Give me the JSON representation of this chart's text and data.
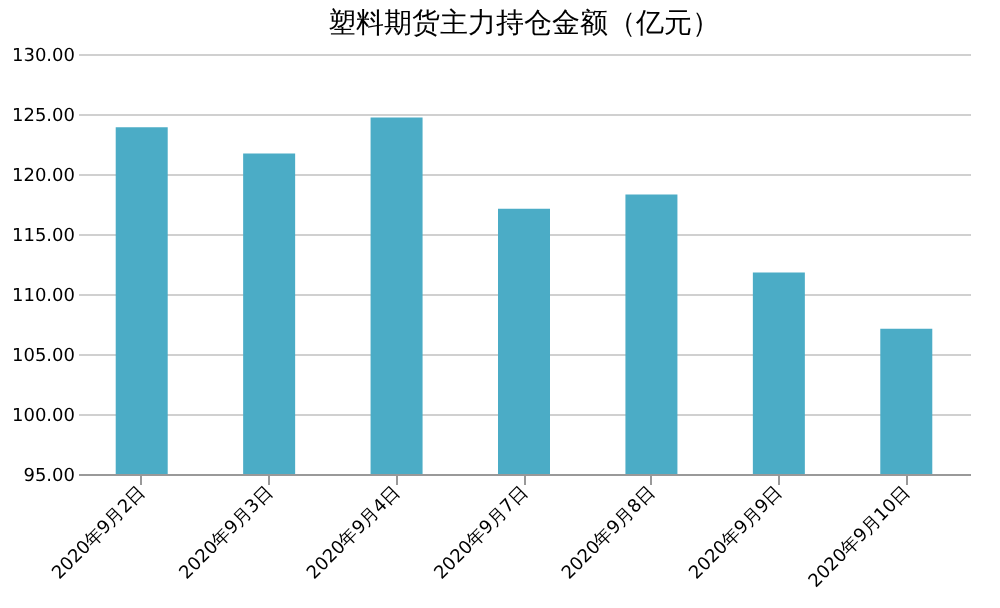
{
  "chart_data": {
    "type": "bar",
    "title": "塑料期货主力持仓金额（亿元）",
    "categories": [
      "2020年9月2日",
      "2020年9月3日",
      "2020年9月4日",
      "2020年9月7日",
      "2020年9月8日",
      "2020年9月9日",
      "2020年9月10日"
    ],
    "values": [
      123.9,
      121.7,
      124.7,
      117.1,
      118.3,
      111.8,
      107.1
    ],
    "color": "#4bacc6",
    "ylim": [
      95,
      130
    ],
    "yticks": [
      {
        "value": 95,
        "label": "95.00"
      },
      {
        "value": 100,
        "label": "100.00"
      },
      {
        "value": 105,
        "label": "105.00"
      },
      {
        "value": 110,
        "label": "110.00"
      },
      {
        "value": 115,
        "label": "115.00"
      },
      {
        "value": 120,
        "label": "120.00"
      },
      {
        "value": 125,
        "label": "125.00"
      },
      {
        "value": 130,
        "label": "130.00"
      }
    ],
    "grid": "y"
  }
}
